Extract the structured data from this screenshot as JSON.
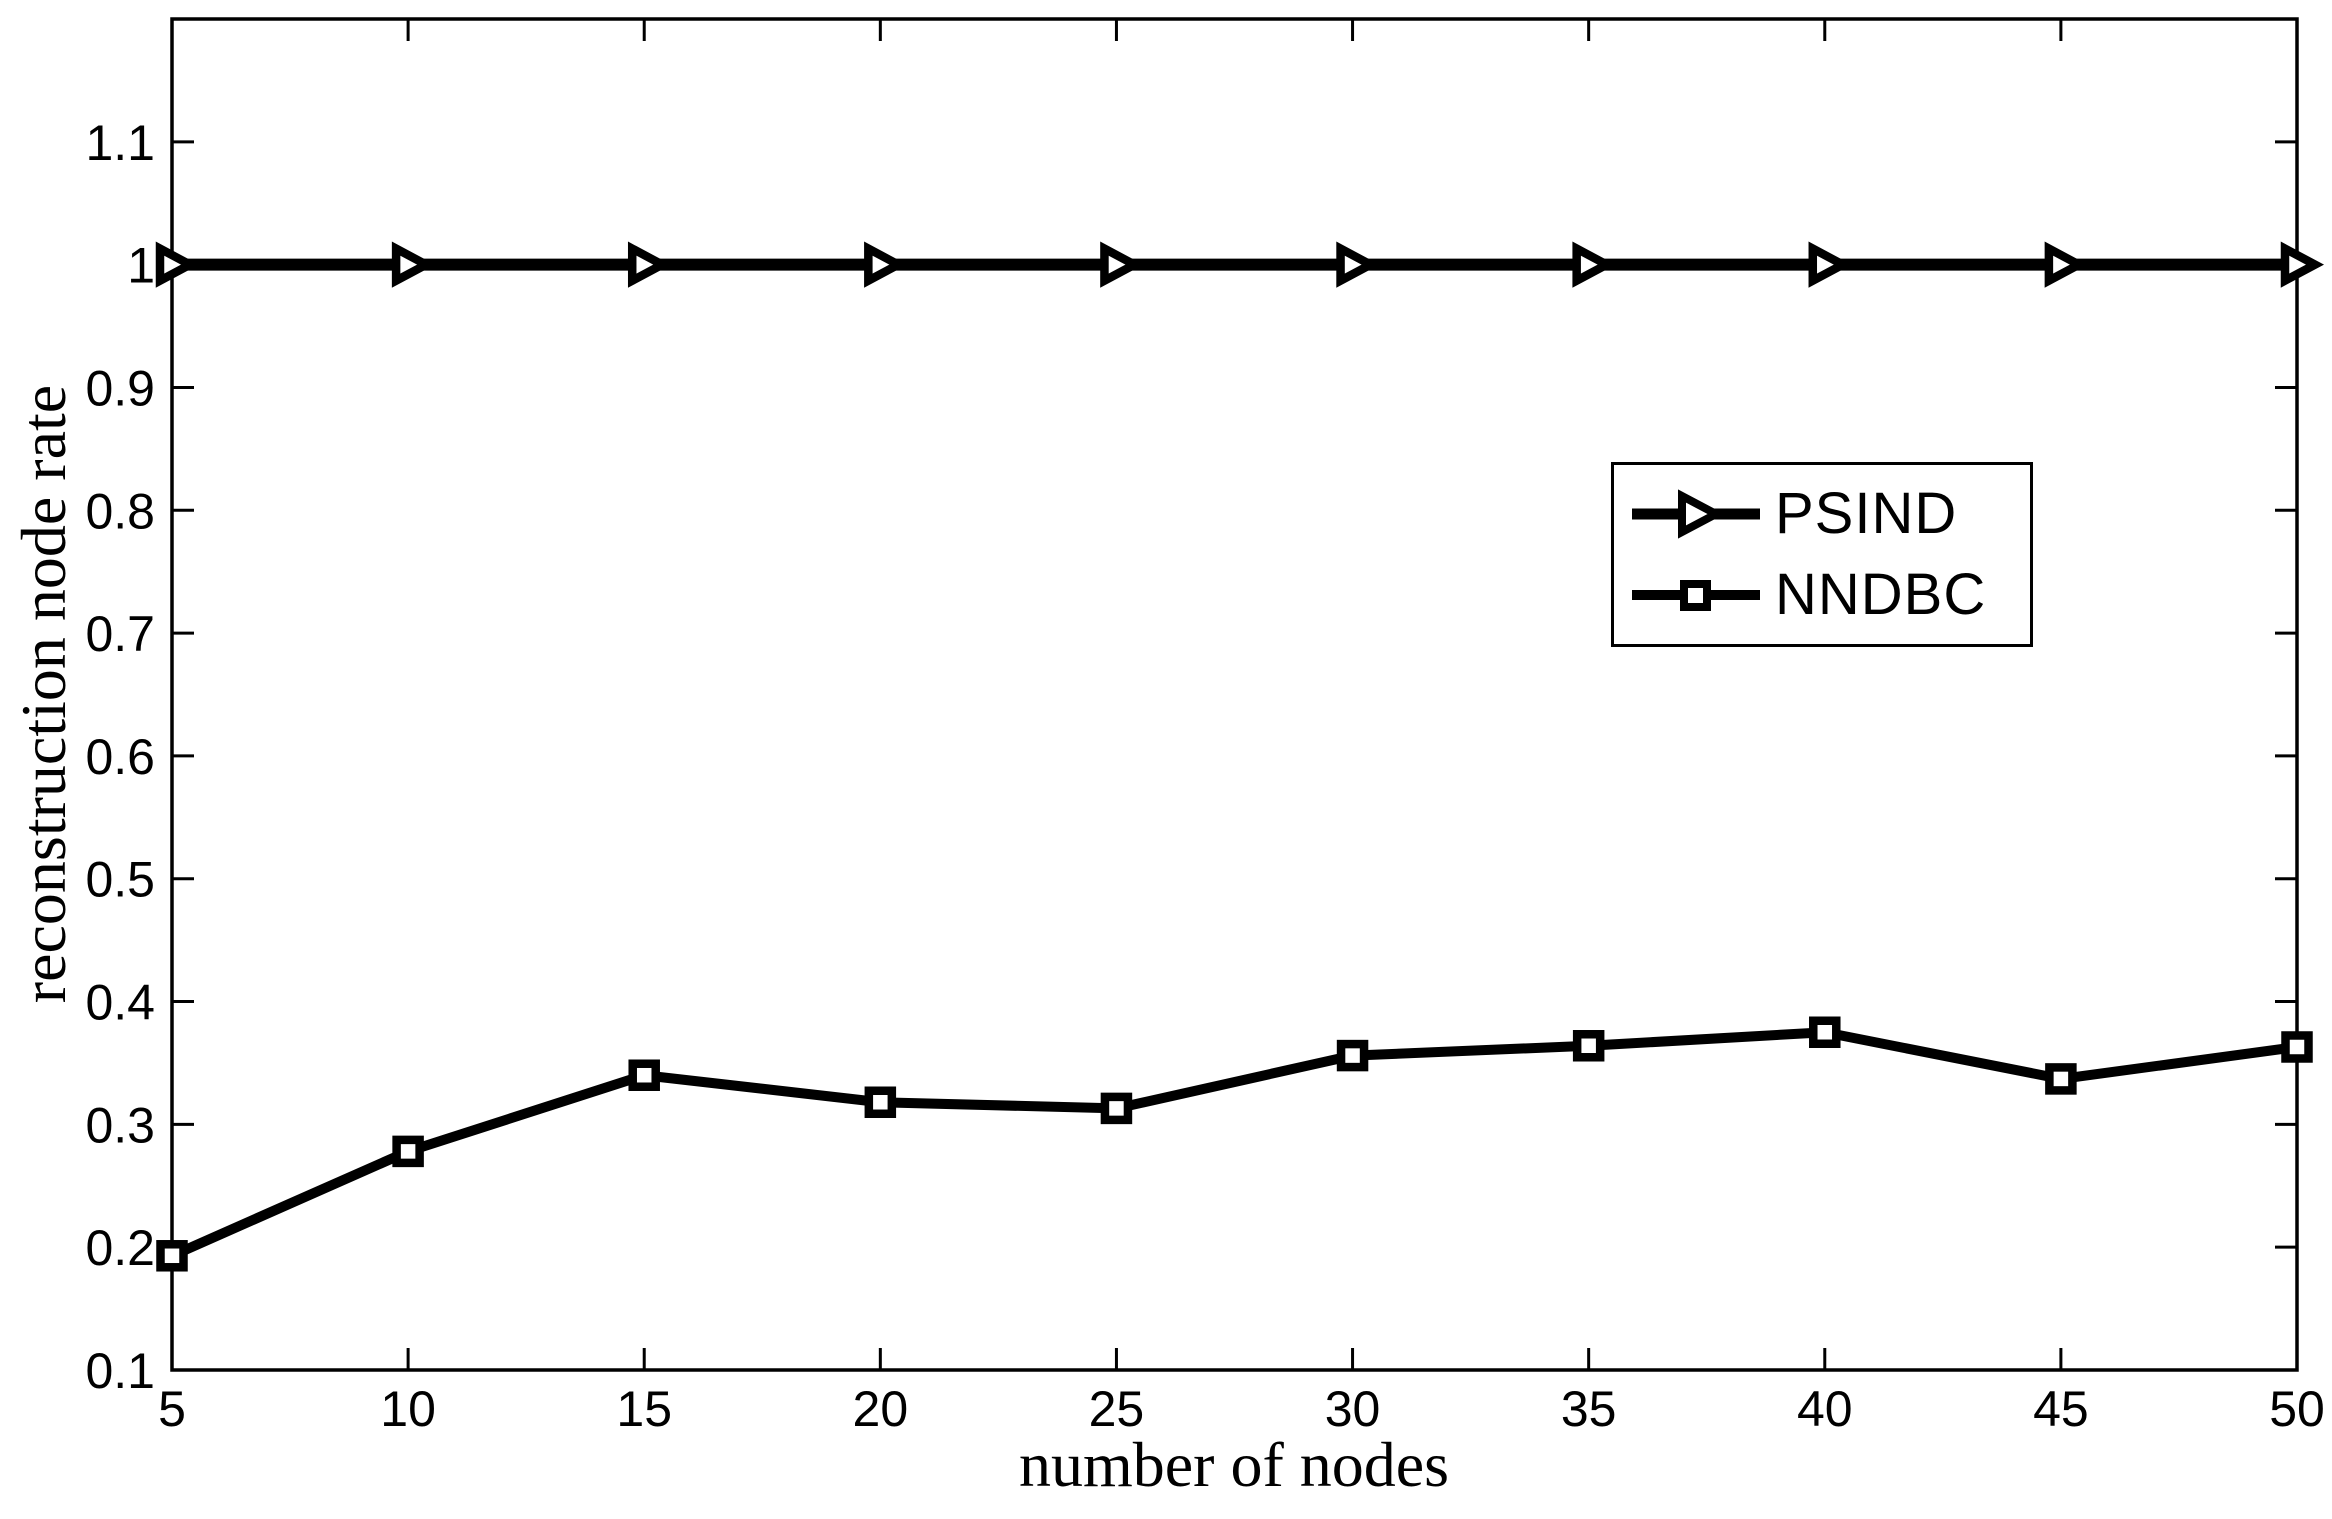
{
  "figure": {
    "background_color": "#ffffff",
    "line_color": "#000000",
    "title": ""
  },
  "chart_data": {
    "type": "line",
    "title": "",
    "xlabel": "number of nodes",
    "ylabel": "reconstruction node rate",
    "xlim": [
      5,
      50
    ],
    "ylim": [
      0.1,
      1.2
    ],
    "grid": false,
    "legend_position": "upper-right-inside",
    "x": [
      5,
      10,
      15,
      20,
      25,
      30,
      35,
      40,
      45,
      50
    ],
    "x_ticks": [
      "5",
      "10",
      "15",
      "20",
      "25",
      "30",
      "35",
      "40",
      "45",
      "50"
    ],
    "y_ticks": [
      0.1,
      0.2,
      0.3,
      0.4,
      0.5,
      0.6,
      0.7,
      0.8,
      0.9,
      1.0,
      1.1
    ],
    "y_tick_labels": [
      "0.1",
      "0.2",
      "0.3",
      "0.4",
      "0.5",
      "0.6",
      "0.7",
      "0.8",
      "0.9",
      "1",
      "1.1"
    ],
    "series": [
      {
        "name": "PSIND",
        "marker": "right-triangle-marker",
        "line_width": 12,
        "color": "#000000",
        "values": [
          1.0,
          1.0,
          1.0,
          1.0,
          1.0,
          1.0,
          1.0,
          1.0,
          1.0,
          1.0
        ]
      },
      {
        "name": "NNDBC",
        "marker": "square-marker",
        "line_width": 10,
        "color": "#000000",
        "values": [
          0.193,
          0.278,
          0.34,
          0.318,
          0.313,
          0.356,
          0.364,
          0.375,
          0.337,
          0.363
        ]
      }
    ]
  }
}
